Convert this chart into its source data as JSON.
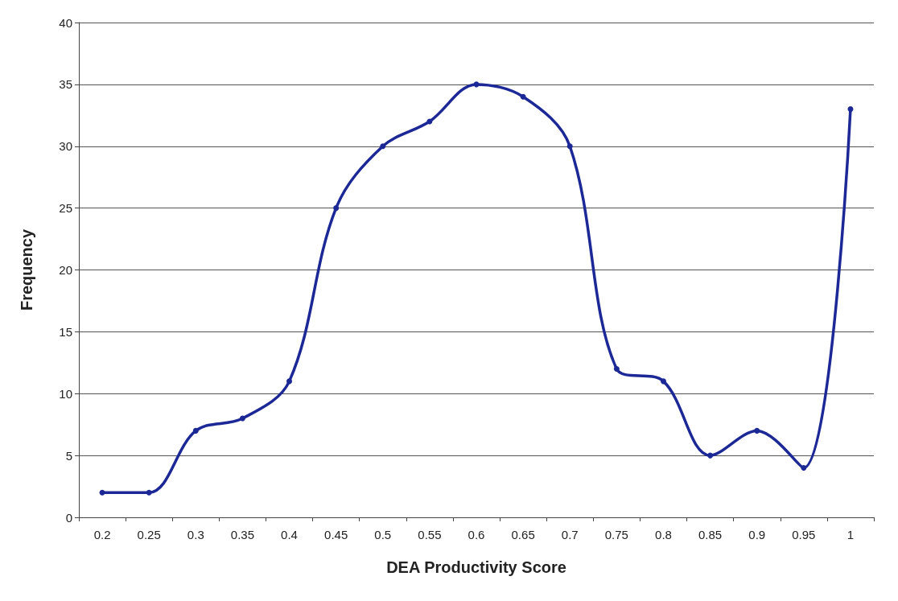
{
  "chart_data": {
    "type": "line",
    "xlabel": "DEA Productivity Score",
    "ylabel": "Frequency",
    "categories": [
      "0.2",
      "0.25",
      "0.3",
      "0.35",
      "0.4",
      "0.45",
      "0.5",
      "0.55",
      "0.6",
      "0.65",
      "0.7",
      "0.75",
      "0.8",
      "0.85",
      "0.9",
      "0.95",
      "1"
    ],
    "values": [
      2,
      2,
      7,
      8,
      11,
      25,
      30,
      32,
      35,
      34,
      30,
      12,
      11,
      5,
      7,
      4,
      33
    ],
    "color": "#1c2896",
    "ylim": [
      0,
      40
    ],
    "yticks": [
      0,
      5,
      10,
      15,
      20,
      25,
      30,
      35,
      40
    ],
    "grid": "y",
    "marker": "circle",
    "line_style": "solid"
  }
}
